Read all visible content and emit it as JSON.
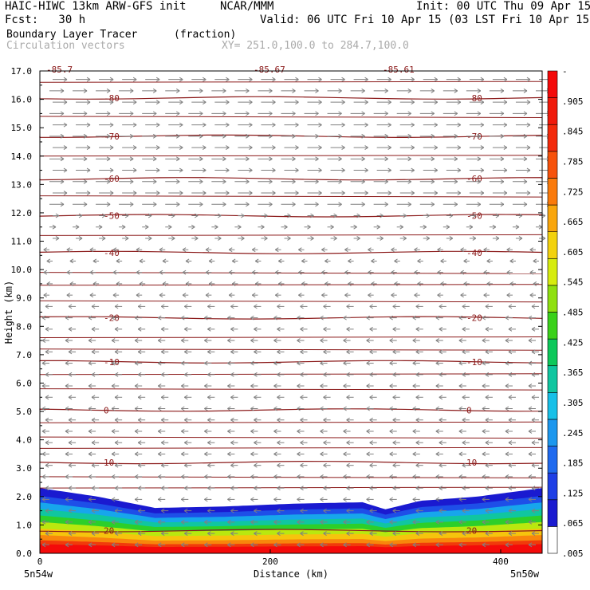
{
  "header": {
    "model": "HAIC-HIWC 13km ARW-GFS init",
    "org": "NCAR/MMM",
    "init": "Init: 00 UTC Thu 09 Apr 15",
    "fcst": "Fcst:   30 h",
    "valid": "Valid: 06 UTC Fri 10 Apr 15 (03 LST Fri 10 Apr 15)",
    "field": "Boundary Layer Tracer",
    "units": "(fraction)",
    "vectors": "Circulation vectors",
    "xy": "XY= 251.0,100.0 to 284.7,100.0"
  },
  "colors": {
    "contour": "#8b1a1a",
    "vector": "#808080",
    "colorbar": [
      "#ffffff",
      "#1a1ad0",
      "#1e3fe6",
      "#1f6aef",
      "#1c97ee",
      "#17c0e8",
      "#10c6a0",
      "#0dc85a",
      "#3ad11a",
      "#8fe010",
      "#d6ec0e",
      "#f3d20d",
      "#f9a60c",
      "#fa7a0b",
      "#f7520b",
      "#f32a0b",
      "#f01a0b",
      "#f40a0a"
    ]
  },
  "chart_data": {
    "type": "heatmap",
    "title": "Boundary Layer Tracer",
    "units": "(fraction)",
    "xlabel": "Distance (km)",
    "ylabel": "Height (km)",
    "xlim": [
      0,
      436
    ],
    "ylim": [
      0,
      17
    ],
    "x_ticks": [
      "0",
      "200",
      "400"
    ],
    "x_tick_values": [
      0,
      200,
      400
    ],
    "x_endpoints": {
      "left": "5n54w",
      "right": "5n50w"
    },
    "y_ticks": [
      "0.0",
      "1.0",
      "2.0",
      "3.0",
      "4.0",
      "5.0",
      "6.0",
      "7.0",
      "8.0",
      "9.0",
      "10.0",
      "11.0",
      "12.0",
      "13.0",
      "14.0",
      "15.0",
      "16.0",
      "17.0"
    ],
    "y_tick_values": [
      0,
      1,
      2,
      3,
      4,
      5,
      6,
      7,
      8,
      9,
      10,
      11,
      12,
      13,
      14,
      15,
      16,
      17
    ],
    "colorbar_labels": [
      "-",
      ".905",
      ".845",
      ".785",
      ".725",
      ".665",
      ".605",
      ".545",
      ".485",
      ".425",
      ".365",
      ".305",
      ".245",
      ".185",
      ".125",
      ".065",
      ".005"
    ],
    "boundary_layer_top_km": [
      [
        0,
        2.3
      ],
      [
        50,
        2.0
      ],
      [
        100,
        1.6
      ],
      [
        160,
        1.65
      ],
      [
        220,
        1.75
      ],
      [
        280,
        1.8
      ],
      [
        300,
        1.55
      ],
      [
        330,
        1.85
      ],
      [
        380,
        2.0
      ],
      [
        436,
        2.3
      ]
    ],
    "temperature_contours_C": [
      {
        "value": -80,
        "height_km": 16.05,
        "labels": [
          "-80",
          "-80"
        ]
      },
      {
        "value": -70,
        "height_km": 14.7,
        "labels": [
          "-70",
          "-70"
        ]
      },
      {
        "value": -60,
        "height_km": 13.2,
        "labels": [
          "-60",
          "-60"
        ]
      },
      {
        "value": -50,
        "height_km": 11.9,
        "labels": [
          "-50",
          "-50"
        ]
      },
      {
        "value": -40,
        "height_km": 10.6,
        "labels": [
          "-40",
          "-40"
        ]
      },
      {
        "value": -20,
        "height_km": 8.3,
        "labels": [
          "-20",
          "-20"
        ]
      },
      {
        "value": -10,
        "height_km": 6.75,
        "labels": [
          "-10",
          "-10"
        ]
      },
      {
        "value": 0,
        "height_km": 5.05,
        "labels": [
          "0",
          "0"
        ]
      },
      {
        "value": 10,
        "height_km": 3.2,
        "labels": [
          "10",
          "10"
        ]
      },
      {
        "value": 20,
        "height_km": 0.8,
        "labels": [
          "20",
          "20"
        ]
      }
    ],
    "top_partial_labels": [
      "-85.7",
      "-85.67",
      "-85.61"
    ]
  }
}
